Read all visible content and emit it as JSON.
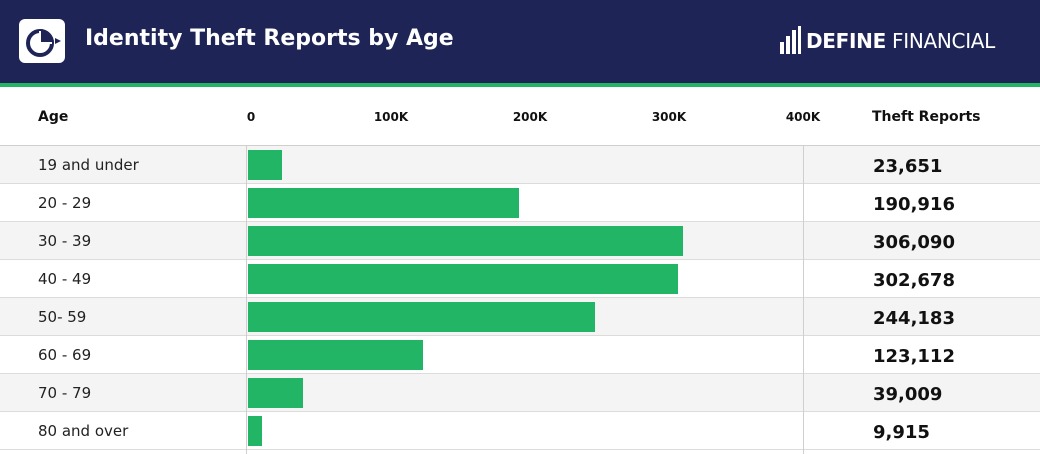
{
  "header": {
    "title": "Identity Theft Reports by Age",
    "brand_bold": "DEFINE",
    "brand_light": "FINANCIAL",
    "logo_icon": "pie-chart-icon",
    "brand_icon": "bar-chart-icon"
  },
  "columns": {
    "age": "Age",
    "reports": "Theft Reports"
  },
  "colors": {
    "header_bg": "#1e2456",
    "accent": "#23b566"
  },
  "chart_data": {
    "type": "bar",
    "orientation": "horizontal",
    "categories": [
      "19 and under",
      "20 - 29",
      "30 - 39",
      "40 - 49",
      "50- 59",
      "60 - 69",
      "70 - 79",
      "80 and over"
    ],
    "values": [
      23651,
      190916,
      306090,
      302678,
      244183,
      123112,
      39009,
      9915
    ],
    "value_labels": [
      "23,651",
      "190,916",
      "306,090",
      "302,678",
      "244,183",
      "123,112",
      "39,009",
      "9,915"
    ],
    "title": "Identity Theft Reports by Age",
    "xlim": [
      0,
      400000
    ],
    "x_ticks": [
      0,
      100000,
      200000,
      300000,
      400000
    ],
    "x_tick_labels": [
      "0",
      "100K",
      "200K",
      "300K",
      "400K"
    ],
    "grid": false,
    "legend": "none"
  }
}
